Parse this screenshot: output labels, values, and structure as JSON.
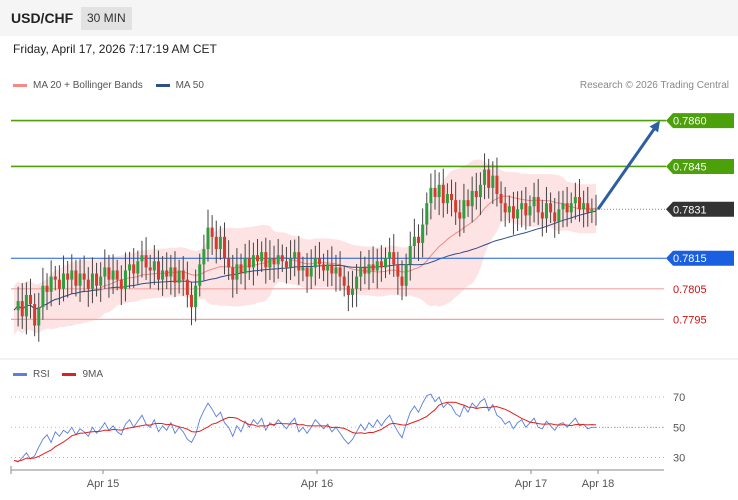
{
  "header": {
    "symbol": "USD/CHF",
    "interval": "30 MIN"
  },
  "datetime": "Friday, April 17, 2026 7:17:19 AM CET",
  "legend": [
    {
      "label": "MA 20 + Bollinger Bands",
      "color": "#f28a8a"
    },
    {
      "label": "MA 50",
      "color": "#2d4f8a"
    }
  ],
  "credit": "Research © 2026 Trading Central",
  "rsi_legend": [
    {
      "label": "RSI",
      "color": "#5b7fdc"
    },
    {
      "label": "9MA",
      "color": "#e02020"
    }
  ],
  "chart_data": [
    {
      "type": "candlestick",
      "ylim": [
        0.7785,
        0.787
      ],
      "levels": [
        {
          "value": 0.786,
          "label": "0.7860",
          "color": "#4ca00a",
          "style": "box"
        },
        {
          "value": 0.7845,
          "label": "0.7845",
          "color": "#4ca00a",
          "style": "box"
        },
        {
          "value": 0.7831,
          "label": "0.7831",
          "color": "#333333",
          "style": "box-dotted"
        },
        {
          "value": 0.7815,
          "label": "0.7815",
          "color": "#1a5fe0",
          "style": "box"
        },
        {
          "value": 0.7805,
          "label": "0.7805",
          "color": "#cc1111",
          "style": "text"
        },
        {
          "value": 0.7795,
          "label": "0.7795",
          "color": "#cc1111",
          "style": "text"
        }
      ],
      "x_labels": [
        "Apr 15",
        "Apr 16",
        "Apr 17",
        "Apr 18"
      ],
      "close_series": [
        0.7798,
        0.7801,
        0.7796,
        0.7803,
        0.78,
        0.7793,
        0.7799,
        0.7806,
        0.7804,
        0.7809,
        0.7808,
        0.7805,
        0.781,
        0.7808,
        0.7811,
        0.7806,
        0.781,
        0.7808,
        0.7805,
        0.781,
        0.7806,
        0.7809,
        0.7812,
        0.7808,
        0.7811,
        0.7808,
        0.7805,
        0.7811,
        0.7813,
        0.781,
        0.7814,
        0.7816,
        0.7812,
        0.7811,
        0.7814,
        0.7808,
        0.7811,
        0.7809,
        0.7812,
        0.7807,
        0.7811,
        0.7808,
        0.7803,
        0.7799,
        0.7806,
        0.7813,
        0.7818,
        0.7825,
        0.7822,
        0.7818,
        0.7822,
        0.7815,
        0.7812,
        0.7808,
        0.7813,
        0.781,
        0.7815,
        0.7812,
        0.7816,
        0.7814,
        0.7817,
        0.7812,
        0.7815,
        0.7813,
        0.7816,
        0.7814,
        0.7812,
        0.7815,
        0.7817,
        0.7811,
        0.7812,
        0.7809,
        0.7812,
        0.7815,
        0.7813,
        0.7811,
        0.7813,
        0.781,
        0.7812,
        0.7809,
        0.7806,
        0.7803,
        0.7805,
        0.7809,
        0.7812,
        0.781,
        0.7813,
        0.7811,
        0.7814,
        0.7812,
        0.7815,
        0.7817,
        0.7813,
        0.7809,
        0.7806,
        0.7813,
        0.7819,
        0.7822,
        0.782,
        0.7826,
        0.7833,
        0.7838,
        0.7835,
        0.7839,
        0.7833,
        0.7836,
        0.7834,
        0.783,
        0.7828,
        0.7834,
        0.7832,
        0.7837,
        0.7835,
        0.7839,
        0.7844,
        0.7838,
        0.7842,
        0.7836,
        0.7833,
        0.783,
        0.7832,
        0.7828,
        0.7831,
        0.7833,
        0.7829,
        0.7832,
        0.7835,
        0.783,
        0.7828,
        0.7833,
        0.783,
        0.7827,
        0.7831,
        0.7833,
        0.783,
        0.7833,
        0.7835,
        0.7831,
        0.7833,
        0.783,
        0.7831,
        0.7831
      ],
      "annotation": {
        "type": "arrow",
        "from_value": 0.7831,
        "to_value": 0.786
      }
    },
    {
      "type": "line",
      "series": [
        {
          "name": "RSI",
          "color": "#5b7fdc"
        },
        {
          "name": "9MA",
          "color": "#e02020"
        }
      ],
      "ylim": [
        25,
        78
      ],
      "y_ticks": [
        70,
        50,
        30
      ],
      "rsi_values": [
        28,
        27,
        30,
        33,
        29,
        31,
        37,
        42,
        45,
        40,
        47,
        44,
        48,
        46,
        50,
        45,
        49,
        47,
        44,
        50,
        46,
        49,
        53,
        48,
        51,
        47,
        45,
        52,
        55,
        50,
        54,
        58,
        52,
        50,
        55,
        47,
        51,
        48,
        53,
        46,
        50,
        47,
        42,
        40,
        45,
        55,
        61,
        66,
        62,
        57,
        60,
        53,
        50,
        44,
        51,
        47,
        54,
        50,
        55,
        52,
        56,
        48,
        53,
        51,
        55,
        52,
        49,
        53,
        56,
        47,
        50,
        46,
        50,
        55,
        52,
        49,
        52,
        47,
        50,
        46,
        42,
        39,
        42,
        47,
        52,
        48,
        53,
        50,
        55,
        51,
        55,
        58,
        52,
        47,
        43,
        52,
        60,
        64,
        60,
        66,
        71,
        72,
        67,
        70,
        63,
        66,
        64,
        59,
        57,
        64,
        60,
        66,
        63,
        67,
        69,
        61,
        65,
        58,
        56,
        52,
        54,
        49,
        53,
        55,
        50,
        53,
        56,
        50,
        49,
        54,
        51,
        48,
        52,
        53,
        50,
        53,
        56,
        51,
        52,
        49,
        50,
        50
      ]
    }
  ]
}
